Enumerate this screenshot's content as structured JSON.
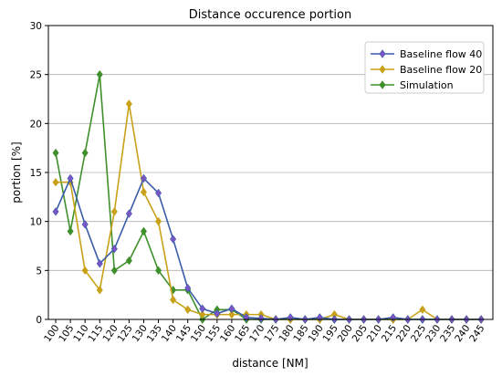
{
  "chart_data": {
    "type": "line",
    "title": "Distance occurence portion",
    "xlabel": "distance [NM]",
    "ylabel": "portion [%]",
    "ylim": [
      0,
      30
    ],
    "yticks": [
      0,
      5,
      10,
      15,
      20,
      25,
      30
    ],
    "grid": "horizontal",
    "legend_position": "top-right",
    "x": [
      100,
      105,
      110,
      115,
      120,
      125,
      130,
      135,
      140,
      145,
      150,
      155,
      160,
      165,
      170,
      175,
      180,
      185,
      190,
      195,
      200,
      205,
      210,
      215,
      220,
      225,
      230,
      235,
      240,
      245
    ],
    "series": [
      {
        "name": "Baseline flow 40",
        "color": "#3a5da8",
        "marker_color": "#7b55c7",
        "values": [
          11,
          14.4,
          9.7,
          5.7,
          7.2,
          10.8,
          14.4,
          12.9,
          8.2,
          3.2,
          1.1,
          0.6,
          1.1,
          0.2,
          0.1,
          0,
          0.2,
          0,
          0.2,
          0,
          0,
          0,
          0,
          0.2,
          0,
          0,
          0,
          0,
          0,
          0
        ]
      },
      {
        "name": "Baseline flow 20",
        "color": "#c9a118",
        "marker_color": "#c9a118",
        "values": [
          14,
          14,
          5,
          3,
          11,
          22,
          13,
          10,
          2,
          1,
          0.5,
          0.5,
          0.5,
          0.5,
          0.5,
          0,
          0,
          0,
          0,
          0.5,
          0,
          0,
          0,
          0,
          0,
          1,
          0,
          0,
          0,
          0
        ]
      },
      {
        "name": "Simulation",
        "color": "#3f8f2c",
        "marker_color": "#3f8f2c",
        "values": [
          17,
          9,
          17,
          25,
          5,
          6,
          9,
          5,
          3,
          3,
          0,
          1,
          1,
          0,
          0,
          0,
          0,
          0,
          0,
          0,
          0,
          0,
          0,
          0,
          0,
          0,
          0,
          0,
          0,
          0
        ]
      }
    ]
  }
}
